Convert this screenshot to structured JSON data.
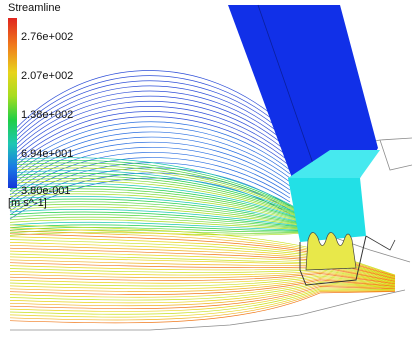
{
  "legend": {
    "title": "Streamline",
    "ticks": [
      "2.76e+002",
      "2.07e+002",
      "1.38e+002",
      "6.94e+001",
      "3.80e-001"
    ],
    "unit": "[m s^-1]",
    "colors": [
      "#e0251f",
      "#f07a1c",
      "#e8d41c",
      "#a6dd1f",
      "#1fcf46",
      "#1ec7b3",
      "#1a78e6",
      "#1535d8"
    ]
  },
  "scene": {
    "nozzle_color": "#1130e8",
    "chamber_color": "#22e0e6",
    "outline_color": "#8c8c8c"
  }
}
